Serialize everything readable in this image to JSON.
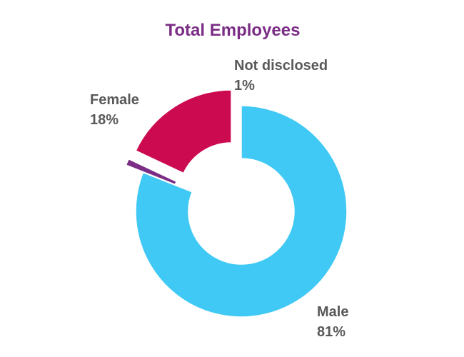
{
  "chart_data": {
    "type": "pie",
    "variant": "donut",
    "title": "Total Employees",
    "slices": [
      {
        "name": "Male",
        "value": 81,
        "value_label": "81%",
        "color": "#40C9F4",
        "exploded": false
      },
      {
        "name": "Not disclosed",
        "value": 1,
        "value_label": "1%",
        "color": "#7B2D86",
        "exploded": true
      },
      {
        "name": "Female",
        "value": 18,
        "value_label": "18%",
        "color": "#CC0A50",
        "exploded": true
      }
    ],
    "title_color": "#7B2D86",
    "label_color": "#595959",
    "legend": "none"
  }
}
